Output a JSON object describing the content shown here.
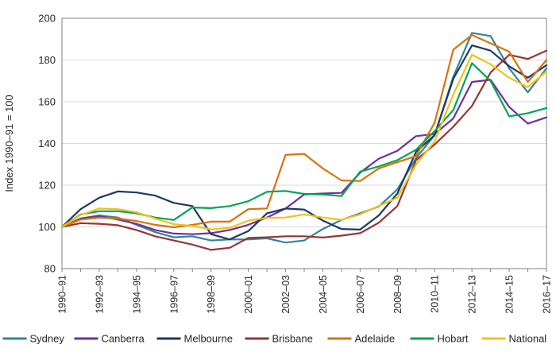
{
  "chart_data": {
    "type": "line",
    "title": "",
    "ylabel": "Index 1990–91 = 100",
    "xlabel": "",
    "ylim": [
      80,
      200
    ],
    "yticks": [
      80,
      100,
      120,
      140,
      160,
      180,
      200
    ],
    "grid": "horizontal",
    "legend_position": "bottom",
    "x_tick_label_rotation": -90,
    "categories": [
      "1990–91",
      "1991–92",
      "1992–93",
      "1993–94",
      "1994–95",
      "1995–96",
      "1996–97",
      "1997–98",
      "1998–99",
      "1999–00",
      "2000–01",
      "2001–02",
      "2002–03",
      "2003–04",
      "2004–05",
      "2005–06",
      "2006–07",
      "2007–08",
      "2008–09",
      "2009–10",
      "2010–11",
      "2011–12",
      "2012–13",
      "2013–14",
      "2014–15",
      "2015–16",
      "2016–17"
    ],
    "x_labels_shown": [
      "1990–91",
      "1992–93",
      "1994–95",
      "1996–97",
      "1998–99",
      "2000–01",
      "2002–03",
      "2004–05",
      "2006–07",
      "2008–09",
      "2010–11",
      "2012–13",
      "2014–15",
      "2016–17"
    ],
    "series": [
      {
        "name": "Sydney",
        "color": "#31859C",
        "values": [
          100,
          104,
          105.5,
          104.5,
          101,
          97.5,
          95,
          95.5,
          93.5,
          94,
          94,
          94.5,
          92.5,
          93.5,
          99,
          103.3,
          106.5,
          109.7,
          118,
          133,
          144,
          172,
          193,
          191.5,
          176,
          164.5,
          176
        ]
      },
      {
        "name": "Canberra",
        "color": "#7030A0",
        "values": [
          100,
          104,
          105.2,
          103.5,
          101.5,
          98.5,
          96.8,
          96.5,
          97,
          98.5,
          101,
          104.5,
          108.8,
          115.6,
          116,
          116.3,
          126,
          132.7,
          136.5,
          143.5,
          144.5,
          152,
          169.5,
          170.5,
          157.5,
          149.5,
          152.5
        ]
      },
      {
        "name": "Melbourne",
        "color": "#1F3864",
        "values": [
          100,
          108.5,
          114,
          117,
          116.5,
          115,
          111.5,
          110,
          96.5,
          94,
          98,
          106.5,
          108.8,
          108.3,
          103,
          99,
          98.7,
          105.5,
          116,
          136,
          144,
          171,
          187,
          184.5,
          177,
          171.5,
          177.5
        ]
      },
      {
        "name": "Brisbane",
        "color": "#943634",
        "values": [
          100,
          101.8,
          101.5,
          100.8,
          98.5,
          95.5,
          93.5,
          91.5,
          89,
          90,
          94.7,
          95,
          95.5,
          95.5,
          94.9,
          95.8,
          97,
          102,
          110,
          132,
          139.5,
          148,
          158,
          174,
          182.5,
          180.5,
          184.5
        ]
      },
      {
        "name": "Adelaide",
        "color": "#D9730D",
        "values": [
          100,
          103.5,
          104.4,
          104,
          102.8,
          101,
          99.8,
          101,
          102.5,
          102.5,
          108.5,
          108.8,
          134.5,
          135,
          128,
          122.3,
          122,
          128,
          131,
          134,
          150,
          185,
          192,
          188,
          184,
          169.5,
          180
        ]
      },
      {
        "name": "Hobart",
        "color": "#00A550",
        "values": [
          100,
          106,
          107.5,
          107.5,
          106.5,
          104.5,
          103.3,
          109.3,
          109,
          110,
          112.3,
          116.8,
          117.2,
          115.8,
          115.5,
          114.8,
          126.5,
          129,
          132,
          137,
          146,
          156,
          178.5,
          170,
          153,
          154.5,
          157
        ]
      },
      {
        "name": "National",
        "color": "#EFC319",
        "values": [
          100,
          105.7,
          108.8,
          108.5,
          107,
          104,
          101.3,
          100.5,
          98.8,
          99.5,
          103,
          104.3,
          104.5,
          106,
          104.5,
          103.4,
          106,
          110,
          114,
          130,
          141,
          163.5,
          182.5,
          178,
          171.5,
          167,
          174.5
        ]
      }
    ],
    "style": {
      "plot_border_color": "#808080",
      "gridline_color": "#D9D9D9",
      "tick_color": "#808080",
      "text_color": "#262626",
      "background": "#FFFFFF",
      "line_width": 2.2
    }
  }
}
